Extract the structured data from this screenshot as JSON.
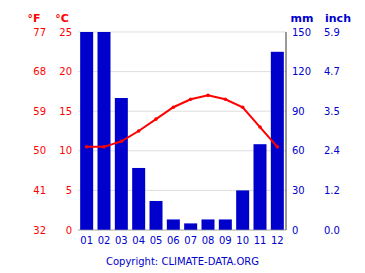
{
  "chart_data": {
    "type": "bar",
    "categories": [
      "01",
      "02",
      "03",
      "04",
      "05",
      "06",
      "07",
      "08",
      "09",
      "10",
      "11",
      "12"
    ],
    "series": [
      {
        "type": "bar",
        "axis": "y2",
        "color": "#0000cc",
        "values": [
          150,
          150,
          100,
          47,
          22,
          8,
          5,
          8,
          8,
          30,
          65,
          135
        ]
      },
      {
        "type": "line",
        "color": "#ff0000",
        "marker": "circle",
        "values": [
          10.5,
          10.5,
          11.2,
          12.5,
          14.0,
          15.5,
          16.5,
          17.0,
          16.5,
          15.5,
          13.0,
          10.5
        ]
      }
    ],
    "ylabel": "°C",
    "ylabel_f": "°F",
    "y2label": "mm",
    "y2label_inch": "inch",
    "ylim": [
      0,
      25
    ],
    "yticks": [
      0,
      5,
      10,
      15,
      20,
      25
    ],
    "yticks_f": [
      {
        "value": 0,
        "label": "32"
      },
      {
        "value": 5,
        "label": "41"
      },
      {
        "value": 10,
        "label": "50"
      },
      {
        "value": 15,
        "label": "59"
      },
      {
        "value": 20,
        "label": "68"
      },
      {
        "value": 25,
        "label": "77"
      }
    ],
    "y2lim": [
      0,
      150
    ],
    "y2ticks": [
      0,
      30,
      60,
      90,
      120,
      150
    ],
    "y2ticks_inch": [
      {
        "value": 0,
        "label": "0.0"
      },
      {
        "value": 30,
        "label": "1.2"
      },
      {
        "value": 60,
        "label": "2.4"
      },
      {
        "value": 90,
        "label": "3.5"
      },
      {
        "value": 120,
        "label": "4.7"
      },
      {
        "value": 150,
        "label": "5.9"
      }
    ],
    "grid": true,
    "annotation": "Copyright: CLIMATE-DATA.ORG"
  }
}
